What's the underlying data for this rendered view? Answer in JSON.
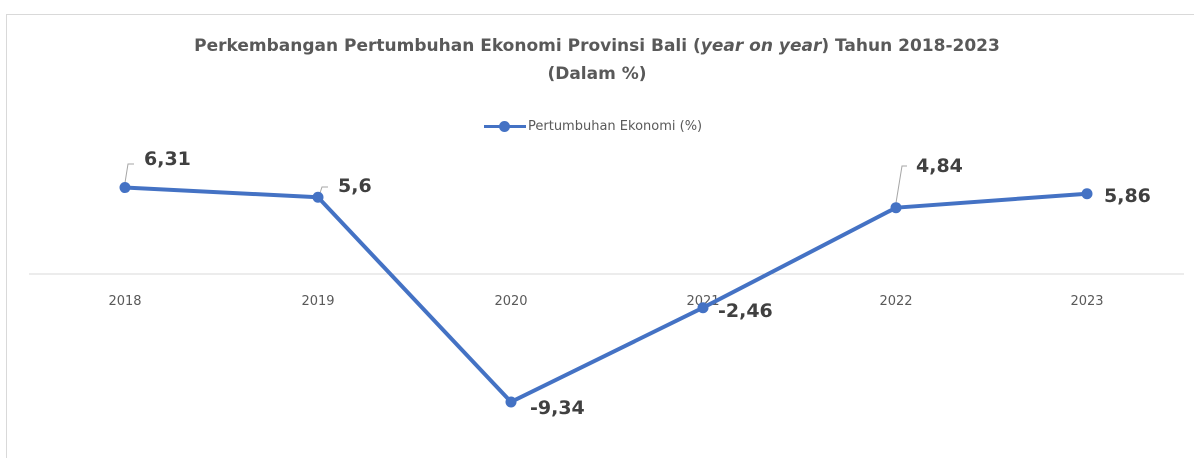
{
  "chart_data": {
    "type": "line",
    "title_part1": "Perkembangan Pertumbuhan Ekonomi Provinsi Bali (",
    "title_italic": "year on year",
    "title_part2": ") Tahun 2018-2023",
    "subtitle": "(Dalam %)",
    "categories": [
      "2018",
      "2019",
      "2020",
      "2021",
      "2022",
      "2023"
    ],
    "series": [
      {
        "name": "Pertumbuhan Ekonomi (%)",
        "values": [
          6.31,
          5.6,
          -9.34,
          -2.46,
          4.84,
          5.86
        ],
        "value_labels": [
          "6,31",
          "5,6",
          "-9,34",
          "-2,46",
          "4,84",
          "5,86"
        ],
        "color": "#4472c4"
      }
    ],
    "xlabel": "",
    "ylabel": "",
    "legend_position": "top",
    "grid": false,
    "ylim": [
      -10.7,
      7.5
    ]
  }
}
